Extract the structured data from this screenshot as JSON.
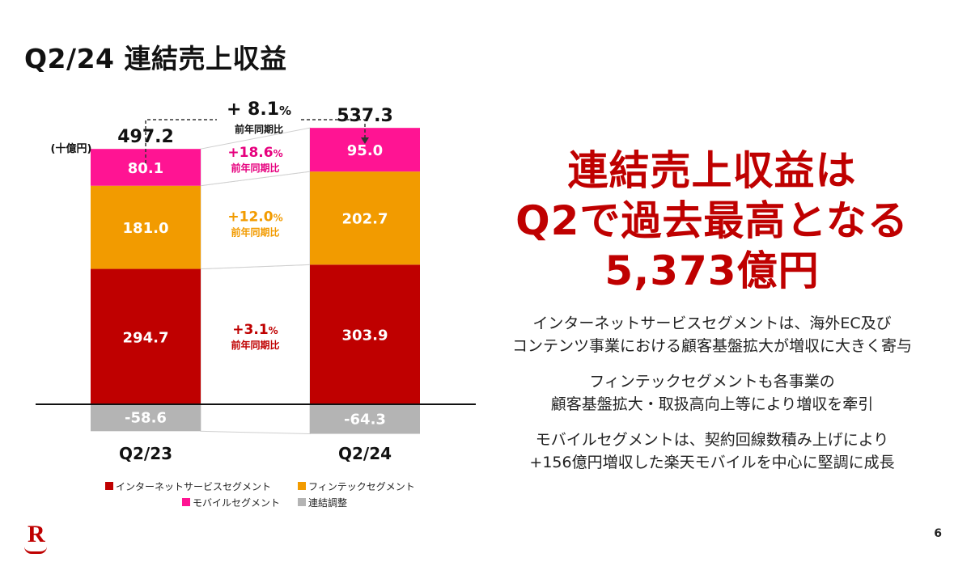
{
  "page": {
    "title": "Q2/24 連結売上収益",
    "page_number": "6",
    "logo": "R"
  },
  "headline": {
    "line1": "連結売上収益は",
    "line2": "Q2で過去最高となる",
    "line3": "5,373億円"
  },
  "notes": [
    {
      "line1": "インターネットサービスセグメントは、海外EC及び",
      "line2": "コンテンツ事業における顧客基盤拡大が増収に大きく寄与"
    },
    {
      "line1": "フィンテックセグメントも各事業の",
      "line2": "顧客基盤拡大・取扱高向上等により増収を牽引"
    },
    {
      "line1": "モバイルセグメントは、契約回線数積み上げにより",
      "line2": "+156億円増収した楽天モバイルを中心に堅調に成長"
    }
  ],
  "chart_data": {
    "type": "bar",
    "stacked": true,
    "unit_label": "(十億円)",
    "categories": [
      "Q2/23",
      "Q2/24"
    ],
    "totals": [
      "497.2",
      "537.3"
    ],
    "total_growth": {
      "value": "+ 8.1",
      "unit": "%",
      "label": "前年同期比"
    },
    "series": [
      {
        "name": "インターネットサービスセグメント",
        "color": "#bf0000",
        "values": [
          294.7,
          303.9
        ],
        "labels": [
          "294.7",
          "303.9"
        ],
        "growth": "+3.1",
        "growth_label": "前年同期比"
      },
      {
        "name": "フィンテックセグメント",
        "color": "#f29b00",
        "values": [
          181.0,
          202.7
        ],
        "labels": [
          "181.0",
          "202.7"
        ],
        "growth": "+12.0",
        "growth_label": "前年同期比"
      },
      {
        "name": "モバイルセグメント",
        "color": "#ff1493",
        "values": [
          80.1,
          95.0
        ],
        "labels": [
          "80.1",
          "95.0"
        ],
        "growth": "+18.6",
        "growth_label": "前年同期比"
      },
      {
        "name": "連結調整",
        "color": "#b4b4b4",
        "values": [
          -58.6,
          -64.3
        ],
        "labels": [
          "-58.6",
          "-64.3"
        ]
      }
    ],
    "growth_unit": "%",
    "growth_text_colors": {
      "インターネットサービスセグメント": "#bf0000",
      "フィンテックセグメント": "#f29b00",
      "モバイルセグメント": "#e6007e"
    }
  }
}
